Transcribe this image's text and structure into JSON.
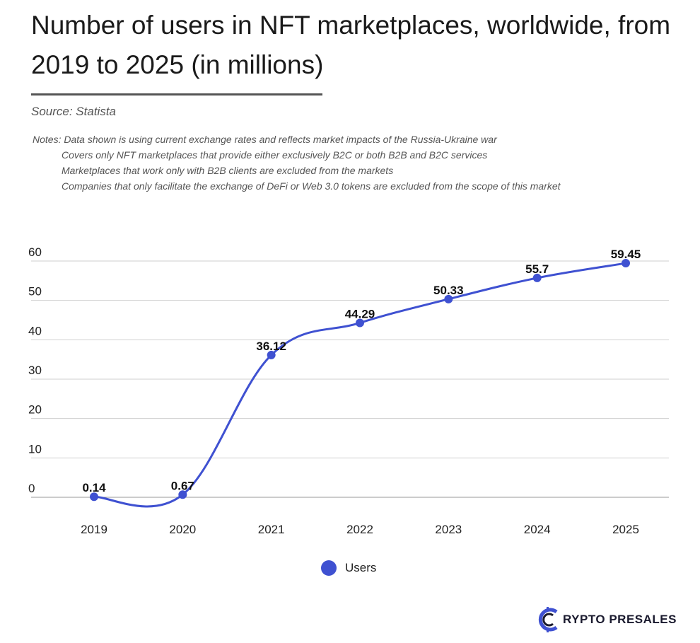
{
  "header": {
    "title": "Number of users in NFT marketplaces, worldwide, from 2019 to 2025 (in millions)",
    "source": "Source: Statista",
    "notes_label": "Notes:",
    "notes": [
      "Data shown is using current exchange rates and reflects market impacts of the Russia-Ukraine war",
      "Covers only NFT marketplaces that provide either exclusively B2C or both B2B and B2C services",
      "Marketplaces that work only with B2B clients are excluded from the markets",
      "Companies that only facilitate the exchange of DeFi or Web 3.0 tokens are excluded from the scope of this market"
    ]
  },
  "chart_data": {
    "type": "line",
    "title": "Number of users in NFT marketplaces, worldwide, from 2019 to 2025 (in millions)",
    "categories": [
      "2019",
      "2020",
      "2021",
      "2022",
      "2023",
      "2024",
      "2025"
    ],
    "series": [
      {
        "name": "Users",
        "values": [
          0.14,
          0.67,
          36.12,
          44.29,
          50.33,
          55.7,
          59.45
        ],
        "color": "#3f51d1"
      }
    ],
    "value_labels": [
      "0.14",
      "0.67",
      "36.12",
      "44.29",
      "50.33",
      "55.7",
      "59.45"
    ],
    "y_ticks": [
      0,
      10,
      20,
      30,
      40,
      50,
      60
    ],
    "ylim": [
      0,
      60
    ],
    "xlabel": "",
    "ylabel": "",
    "grid": true,
    "legend_position": "bottom-center",
    "smooth": true
  },
  "legend": {
    "label": "Users"
  },
  "brand": {
    "name": "RYPTO PRESALES",
    "logo_icon": "crypto-presales-c-logo"
  }
}
